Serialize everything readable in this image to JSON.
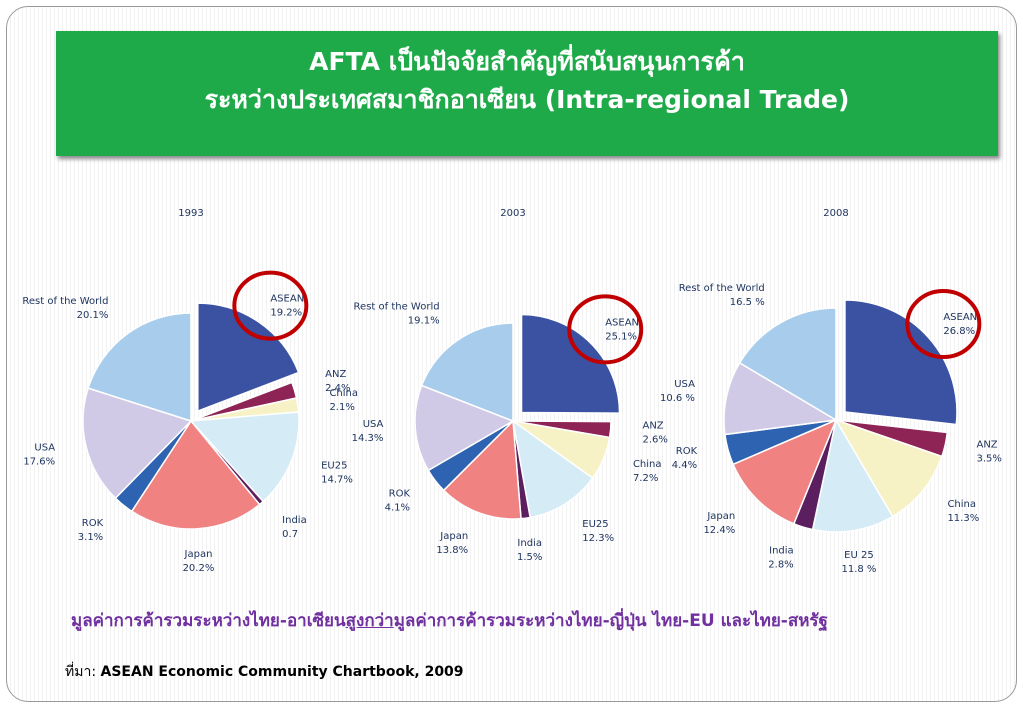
{
  "header": {
    "title_line1": "AFTA เป็นปัจจัยสำคัญที่สนับสนุนการค้า",
    "title_line2": "ระหว่างประเทศสมาชิกอาเซียน (Intra-regional Trade)"
  },
  "chart_data": [
    {
      "type": "pie",
      "title": "1993",
      "categories": [
        "ASEAN",
        "ANZ",
        "China",
        "EU25",
        "India",
        "Japan",
        "ROK",
        "USA",
        "Rest of the World"
      ],
      "values": [
        19.2,
        2.4,
        2.1,
        14.7,
        0.7,
        20.2,
        3.1,
        17.6,
        20.1
      ],
      "value_labels": [
        "19.2%",
        "2.4%",
        "2.1%",
        "14.7%",
        "0.7",
        "20.2%",
        "3.1%",
        "17.6%",
        "20.1%"
      ],
      "colors": [
        "#3b52a3",
        "#8e2456",
        "#f7f2c6",
        "#d5ebf6",
        "#5b1f60",
        "#f08282",
        "#2e63b1",
        "#d0cae6",
        "#a8cdec"
      ],
      "explode": 0
    },
    {
      "type": "pie",
      "title": "2003",
      "categories": [
        "ASEAN",
        "ANZ",
        "China",
        "EU25",
        "India",
        "Japan",
        "ROK",
        "USA",
        "Rest of the World"
      ],
      "values": [
        25.1,
        2.6,
        7.2,
        12.3,
        1.5,
        13.8,
        4.1,
        14.3,
        19.1
      ],
      "value_labels": [
        "25.1%",
        "2.6%",
        "7.2%",
        "12.3%",
        "1.5%",
        "13.8%",
        "4.1%",
        "14.3%",
        "19.1%"
      ],
      "colors": [
        "#3b52a3",
        "#8e2456",
        "#f7f2c6",
        "#d5ebf6",
        "#5b1f60",
        "#f08282",
        "#2e63b1",
        "#d0cae6",
        "#a8cdec"
      ],
      "explode": 0
    },
    {
      "type": "pie",
      "title": "2008",
      "categories": [
        "ASEAN",
        "ANZ",
        "China",
        "EU 25",
        "India",
        "Japan",
        "ROK",
        "USA",
        "Rest of the World"
      ],
      "values": [
        26.8,
        3.5,
        11.3,
        11.8,
        2.8,
        12.4,
        4.4,
        10.6,
        16.5
      ],
      "value_labels": [
        "26.8%",
        "3.5%",
        "11.3%",
        "11.8 %",
        "2.8%",
        "12.4%",
        "4.4%",
        "10.6 %",
        "16.5 %"
      ],
      "colors": [
        "#3b52a3",
        "#8e2456",
        "#f7f2c6",
        "#d5ebf6",
        "#5b1f60",
        "#f08282",
        "#2e63b1",
        "#d0cae6",
        "#a8cdec"
      ],
      "explode": 0
    }
  ],
  "caption": {
    "before": "มูลค่าการค้ารวมระหว่างไทย-อาเซียน",
    "emphasis": "สูงกว่า",
    "after": "มูลค่าการค้ารวมระหว่างไทย-ญี่ปุ่น ไทย-EU และไทย-สหรัฐ"
  },
  "source": {
    "label": "ที่มา: ",
    "text": "ASEAN Economic Community Chartbook, 2009"
  }
}
